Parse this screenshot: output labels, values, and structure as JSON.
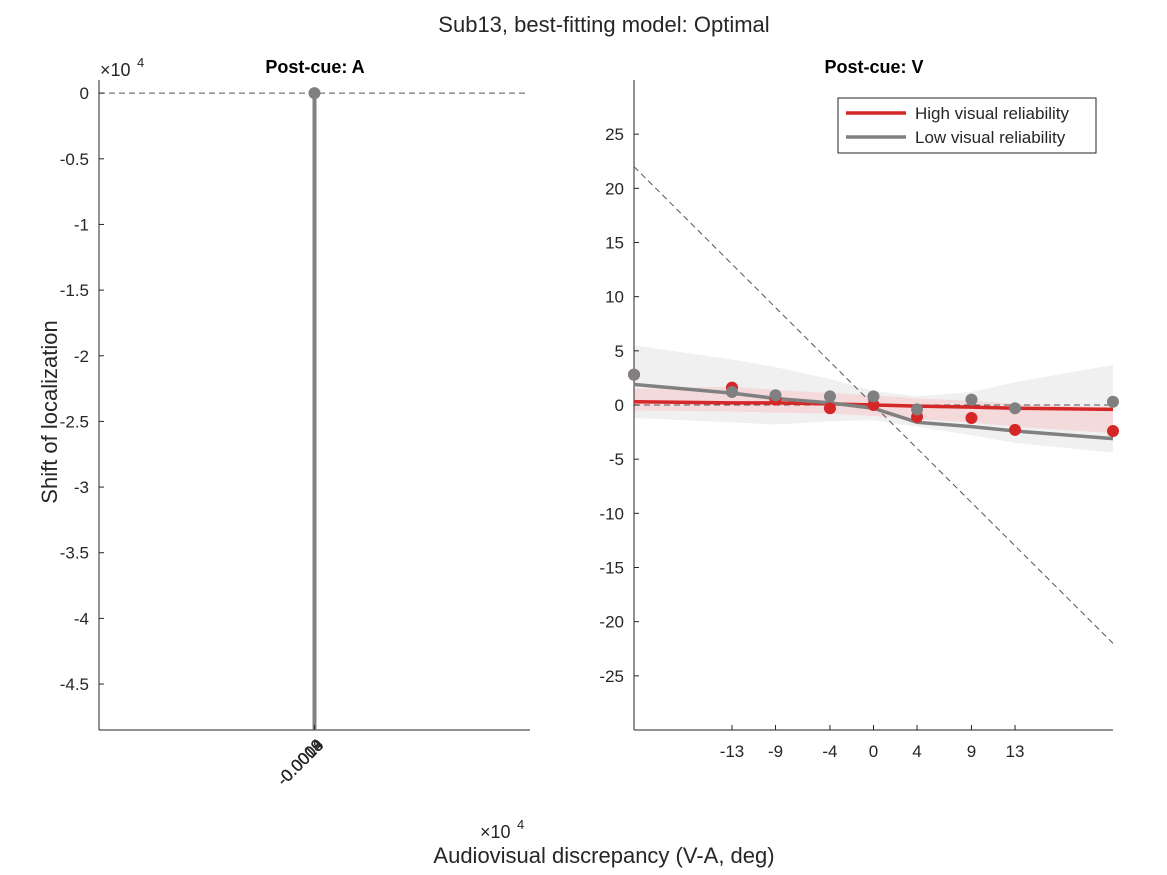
{
  "figure": {
    "suptitle": "Sub13, best-fitting model: Optimal",
    "xlabel": "Audiovisual discrepancy (V-A, deg)",
    "ylabel": "Shift of localization",
    "x_exponent_label": "×10",
    "x_exponent_power": "4"
  },
  "colors": {
    "high": "#d62728",
    "low": "#808080",
    "high_band": "#f6d3d3",
    "low_band": "#ebebeb",
    "axis": "#262626",
    "reference_line": "#555555"
  },
  "legend": {
    "placement": "top-right",
    "items": [
      {
        "label": "High visual reliability",
        "color": "#d62728"
      },
      {
        "label": "Low visual reliability",
        "color": "#808080"
      }
    ]
  },
  "chart_data": [
    {
      "type": "line",
      "title": "Post-cue: A",
      "y_exponent_label": "×10",
      "y_exponent_power": "4",
      "xlim": [
        -0.5,
        0.5
      ],
      "ylim": [
        -4.85,
        0.1
      ],
      "yticks": [
        0,
        -0.5,
        -1,
        -1.5,
        -2,
        -2.5,
        -3,
        -3.5,
        -4,
        -4.5
      ],
      "ytick_labels": [
        "0",
        "-0.5",
        "-1",
        "-1.5",
        "-2",
        "-2.5",
        "-3",
        "-3.5",
        "-4",
        "-4.5"
      ],
      "xtick_labels": [
        "-0.0013",
        "-0.0009",
        "-0.0004",
        "0",
        "0.0004",
        "0.0009",
        "0.0013"
      ],
      "reference_line_y": 0,
      "vertical_line": {
        "x": 0,
        "y_from": 0,
        "y_to": -4.85,
        "color": "#808080"
      },
      "marker": {
        "x": 0,
        "y": 0
      },
      "grid": false
    },
    {
      "type": "line",
      "title": "Post-cue: V",
      "xlim": [
        -22,
        22
      ],
      "ylim": [
        -30,
        30
      ],
      "xticks": [
        -13,
        -9,
        -4,
        0,
        4,
        9,
        13
      ],
      "xtick_labels": [
        "-13",
        "-9",
        "-4",
        "0",
        "4",
        "9",
        "13"
      ],
      "yticks": [
        25,
        20,
        15,
        10,
        5,
        0,
        -5,
        -10,
        -15,
        -20,
        -25
      ],
      "ytick_labels": [
        "25",
        "20",
        "15",
        "10",
        "5",
        "0",
        "-5",
        "-10",
        "-15",
        "-20",
        "-25"
      ],
      "reference_line_y": 0,
      "diagonal_reference": {
        "x": [
          -22,
          22
        ],
        "y": [
          22,
          -22
        ]
      },
      "grid": false,
      "x": [
        -22,
        -13,
        -9,
        -4,
        0,
        4,
        9,
        13,
        22
      ],
      "series": [
        {
          "name": "High visual reliability",
          "color": "#d62728",
          "points": [
            2.8,
            1.6,
            0.5,
            -0.3,
            0.0,
            -1.1,
            -1.2,
            -2.3,
            -2.4
          ],
          "fit": [
            0.3,
            0.2,
            0.2,
            0.1,
            0.0,
            -0.1,
            -0.2,
            -0.3,
            -0.4
          ],
          "band_upper": [
            1.5,
            1.7,
            1.4,
            1.1,
            0.9,
            0.6,
            0.4,
            0.1,
            -0.2
          ],
          "band_lower": [
            -0.5,
            -0.6,
            -0.7,
            -0.8,
            -1.0,
            -1.3,
            -1.6,
            -2.0,
            -2.6
          ]
        },
        {
          "name": "Low visual reliability",
          "color": "#808080",
          "points": [
            2.8,
            1.2,
            0.9,
            0.8,
            0.8,
            -0.4,
            0.5,
            -0.3,
            0.3
          ],
          "fit": [
            1.9,
            1.1,
            0.6,
            0.2,
            -0.3,
            -1.6,
            -2.0,
            -2.4,
            -3.1
          ],
          "band_upper": [
            5.5,
            4.2,
            3.5,
            2.4,
            1.3,
            0.8,
            1.2,
            2.1,
            3.7
          ],
          "band_lower": [
            -1.2,
            -1.6,
            -1.8,
            -1.5,
            -1.4,
            -2.0,
            -2.8,
            -3.5,
            -4.4
          ]
        }
      ]
    }
  ]
}
